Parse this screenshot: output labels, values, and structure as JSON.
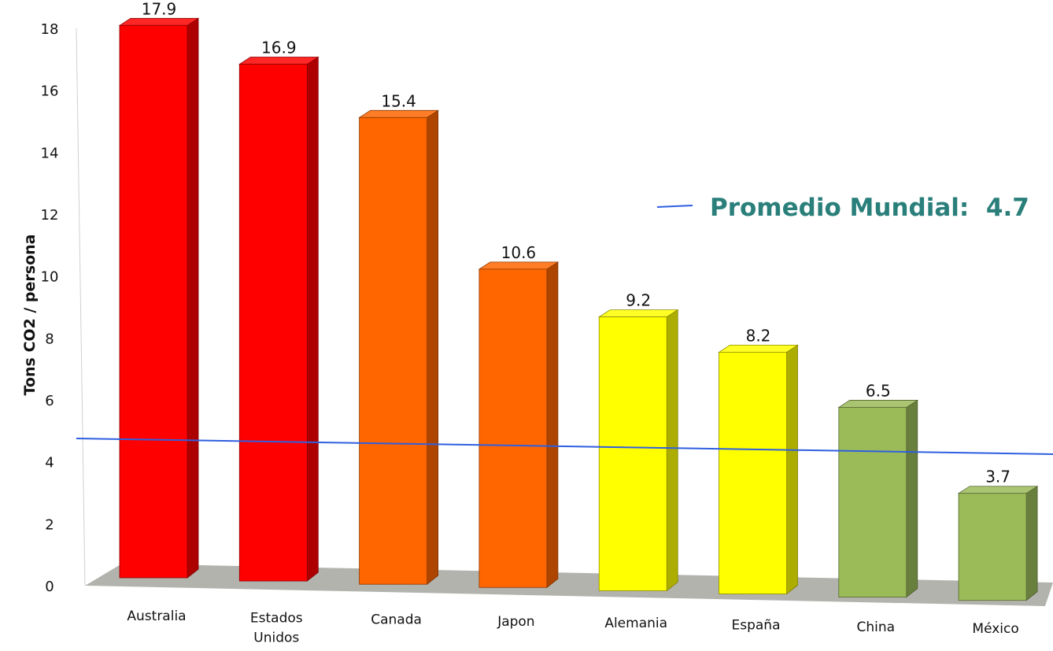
{
  "chart_data": {
    "type": "bar",
    "ylabel": "Tons CO2 / persona",
    "ylim": [
      0,
      18
    ],
    "yticks": [
      "0",
      "2",
      "4",
      "6",
      "8",
      "10",
      "12",
      "14",
      "16",
      "18"
    ],
    "categories": [
      "Australia",
      "Estados\nUnidos",
      "Canada",
      "Japon",
      "Alemania",
      "España",
      "China",
      "México"
    ],
    "values": [
      17.9,
      16.9,
      15.4,
      10.6,
      9.2,
      8.2,
      6.5,
      3.7
    ],
    "data_labels": [
      "17.9",
      "16.9",
      "15.4",
      "10.6",
      "9.2",
      "8.2",
      "6.5",
      "3.7"
    ],
    "bar_colors": [
      "#ff0000",
      "#ff0000",
      "#ff6600",
      "#ff6600",
      "#ffff00",
      "#ffff00",
      "#9bbb59",
      "#9bbb59"
    ],
    "reference_line": {
      "value": 4.7,
      "color": "#2f5fe0"
    },
    "annotation": "Promedio Mundial:  4.7",
    "annotation_color": "#2a7f7a",
    "style": "3d-column"
  }
}
